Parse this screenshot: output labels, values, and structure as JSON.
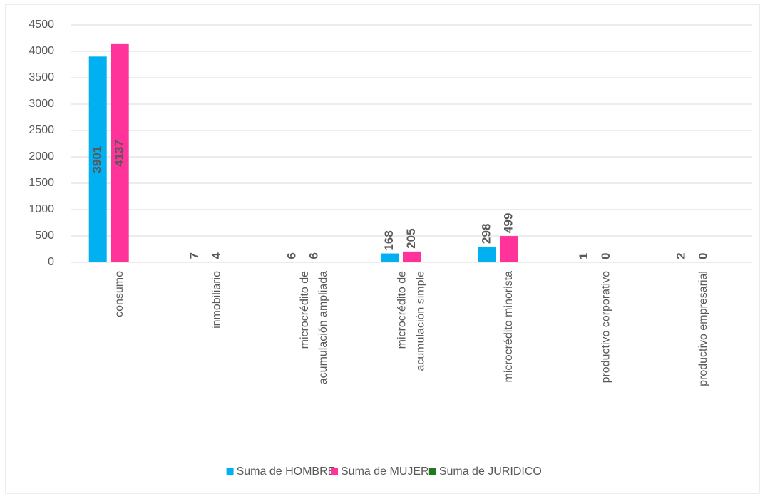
{
  "chart_data": {
    "type": "bar",
    "categories": [
      "consumo",
      "inmobiliario",
      "microcrédito de acumulación ampliada",
      "microcrédito de acumulación simple",
      "microcrédito minorista",
      "productivo corporativo",
      "productivo empresarial"
    ],
    "series": [
      {
        "name": "Suma de HOMBRE",
        "color": "#00b0f0",
        "label_color": "#1f3864",
        "values": [
          3901,
          7,
          6,
          168,
          298,
          1,
          2
        ]
      },
      {
        "name": "Suma de MUJER",
        "color": "#ff3399",
        "label_color": "#000000",
        "values": [
          4137,
          4,
          6,
          205,
          499,
          0,
          0
        ]
      },
      {
        "name": "Suma de JURIDICO",
        "color": "#1e7b1e",
        "label_color": "#000000",
        "values": [
          null,
          null,
          null,
          null,
          null,
          null,
          null
        ]
      }
    ],
    "ylim": [
      0,
      4500
    ],
    "yticks": [
      0,
      500,
      1000,
      1500,
      2000,
      2500,
      3000,
      3500,
      4000,
      4500
    ],
    "grid": true,
    "legend": "bottom"
  }
}
